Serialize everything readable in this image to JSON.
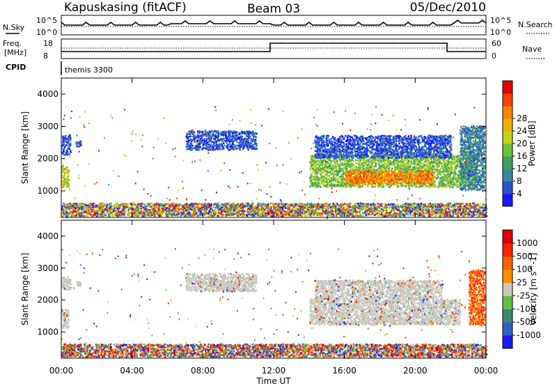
{
  "header": {
    "station": "Kapuskasing (fitACF)",
    "beam": "Beam 03",
    "date": "05/Dec/2010"
  },
  "summary_panel": {
    "nsky_label": "N.Sky",
    "nsky_top": "10^5",
    "nsky_bottom": "10^0",
    "nsearch_label": "N.Search",
    "nsearch_top": "10^5",
    "nsearch_bottom": "10^0",
    "freq_label_top": "Freq.",
    "freq_label_bottom": "[MHz]",
    "freq_top": "18",
    "freq_bottom": "8",
    "nave_label": "Nave",
    "nave_top": "60",
    "nave_bottom": "0",
    "cpid_label": "CPID",
    "cpid_value": "themis 3300"
  },
  "chart_data": [
    {
      "type": "heatmap",
      "panel": "power",
      "ylabel": "Slant Range [km]",
      "xlabel": "",
      "ylim": [
        180,
        4500
      ],
      "xlim": [
        0,
        24
      ],
      "x_ticks": [
        0,
        4,
        8,
        12,
        16,
        20,
        24
      ],
      "y_ticks": [
        1000,
        2000,
        3000,
        4000
      ],
      "colorbar": {
        "label": "Power [dB]",
        "ticks": [
          "4",
          "8",
          "12",
          "16",
          "20",
          "24",
          "28"
        ],
        "colors": [
          "#1a1aff",
          "#2a52cf",
          "#3a8aa0",
          "#40a060",
          "#6cc03a",
          "#c8d41a",
          "#f0b000",
          "#ff8000",
          "#ff4000",
          "#e00000"
        ]
      },
      "regions": [
        {
          "t0": 0.0,
          "t1": 0.5,
          "r0": 2100,
          "r1": 2700,
          "level": 1
        },
        {
          "t0": 0.0,
          "t1": 0.4,
          "r0": 1100,
          "r1": 1800,
          "level": 5
        },
        {
          "t0": 0.8,
          "t1": 1.1,
          "r0": 2350,
          "r1": 2550,
          "level": 1
        },
        {
          "t0": 7.0,
          "t1": 11.0,
          "r0": 2250,
          "r1": 2850,
          "level": 1
        },
        {
          "t0": 14.0,
          "t1": 23.5,
          "r0": 1100,
          "r1": 2100,
          "level": 4
        },
        {
          "t0": 16.0,
          "t1": 21.0,
          "r0": 1200,
          "r1": 1600,
          "level": 7
        },
        {
          "t0": 14.3,
          "t1": 22.0,
          "r0": 2000,
          "r1": 2700,
          "level": 1
        },
        {
          "t0": 22.5,
          "t1": 23.9,
          "r0": 1000,
          "r1": 3000,
          "level": 2
        },
        {
          "t0": 0.0,
          "t1": 24.0,
          "r0": 200,
          "r1": 600,
          "level": 3
        }
      ]
    },
    {
      "type": "heatmap",
      "panel": "velocity",
      "ylabel": "Slant Range [km]",
      "xlabel": "Time UT",
      "ylim": [
        180,
        4500
      ],
      "xlim": [
        0,
        24
      ],
      "x_ticks": [
        0,
        4,
        8,
        12,
        16,
        20,
        24
      ],
      "x_tick_labels": [
        "00:00",
        "04:00",
        "08:00",
        "12:00",
        "16:00",
        "20:00",
        "00:00"
      ],
      "y_ticks": [
        1000,
        2000,
        3000,
        4000
      ],
      "colorbar": {
        "label": "Velocity [m s^-1]",
        "ticks": [
          "1000",
          "500",
          "100",
          "25",
          "-25",
          "-100",
          "-500",
          "-1000"
        ],
        "colors": [
          "#1a1aff",
          "#3060c0",
          "#3c8a6a",
          "#60c040",
          "#c8c8c0",
          "#ff9000",
          "#ff6000",
          "#ff2000",
          "#e00000"
        ]
      },
      "regions": [
        {
          "t0": 0.0,
          "t1": 0.5,
          "r0": 2300,
          "r1": 2700,
          "level": 4
        },
        {
          "t0": 0.0,
          "t1": 0.4,
          "r0": 1100,
          "r1": 1700,
          "level": 4
        },
        {
          "t0": 0.8,
          "t1": 1.1,
          "r0": 2400,
          "r1": 2550,
          "level": 4
        },
        {
          "t0": 7.0,
          "t1": 11.0,
          "r0": 2250,
          "r1": 2800,
          "level": 4
        },
        {
          "t0": 14.0,
          "t1": 22.5,
          "r0": 1200,
          "r1": 2000,
          "level": 4
        },
        {
          "t0": 14.3,
          "t1": 21.5,
          "r0": 2000,
          "r1": 2600,
          "level": 4
        },
        {
          "t0": 23.0,
          "t1": 23.9,
          "r0": 1200,
          "r1": 2900,
          "level": 6
        },
        {
          "t0": 0.0,
          "t1": 24.0,
          "r0": 200,
          "r1": 600,
          "level": 3
        }
      ]
    }
  ]
}
